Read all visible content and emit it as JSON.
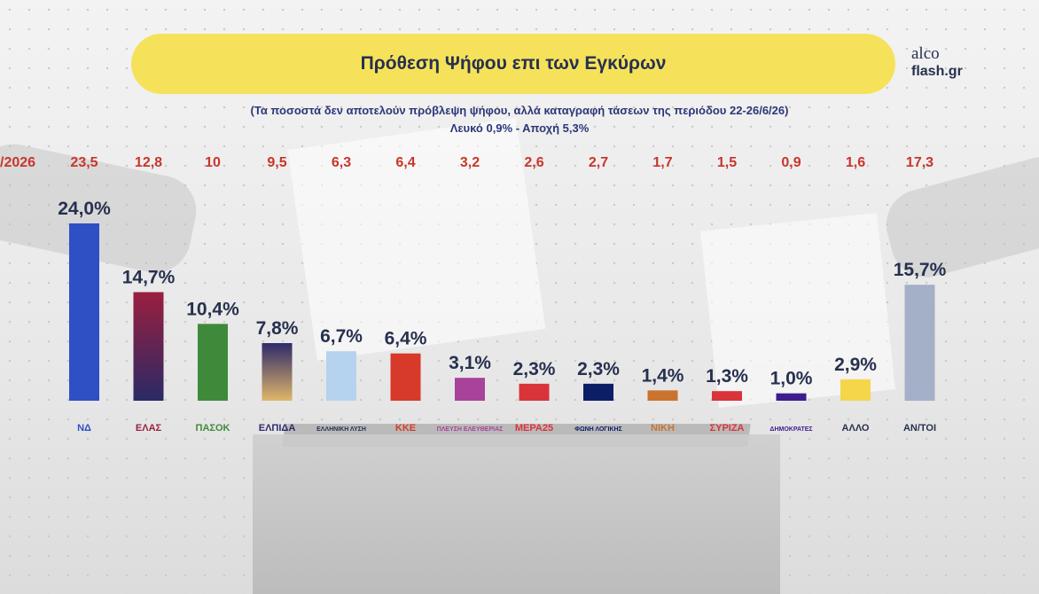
{
  "header": {
    "title": "Πρόθεση Ψήφου επι των Εγκύρων",
    "brand_top": "alco",
    "brand_bottom": "flash.gr",
    "subtitle_line1": "(Τα ποσοστά δεν αποτελούν πρόβλεψη ψήφου, αλλά καταγραφή τάσεων της περιόδου 22-26/6/26)",
    "subtitle_line2": "Λευκό 0,9% - Αποχή 5,3%"
  },
  "chart_data": {
    "type": "bar",
    "title": "Πρόθεση Ψήφου επι των Εγκύρων",
    "previous_row_label": "/2026",
    "categories": [
      "ΝΔ",
      "ΕΛΑΣ",
      "ΠΑΣΟΚ",
      "ΕΛΠΙΔΑ",
      "ΕΛΛΗΝΙΚΗ ΛΥΣΗ",
      "ΚΚΕ",
      "ΠΛΕΥΣΗ ΕΛΕΥΘΕΡΙΑΣ",
      "ΜΕΡΑ25",
      "ΦΩΝΗ ΛΟΓΙΚΗΣ",
      "ΝΙΚΗ",
      "ΣΥΡΙΖΑ",
      "ΔΗΜΟΚΡΑΤΕΣ",
      "ΑΛΛΟ",
      "ΑΝ/ΤΟΙ"
    ],
    "logo_labels": [
      "ΝΔ",
      "ΕΛΑΣ",
      "ΠΑΣΟΚ",
      "ΕΛΠΙΔΑ",
      "ΕΛΛΗΝΙΚΗ ΛΥΣΗ",
      "ΚΚΕ",
      "ΠΛΕΥΣΗ ΕΛΕΥΘΕΡΙΑΣ",
      "ΜΕΡΑ25",
      "ΦΩΝΗ ΛΟΓΙΚΗΣ",
      "ΝΙΚΗ",
      "ΣΥΡΙΖΑ",
      "ΔΗΜΟΚΡΑΤΕΣ",
      "ΑΛΛΟ",
      "ΑΝ/ΤΟΙ"
    ],
    "values": [
      24.0,
      14.7,
      10.4,
      7.8,
      6.7,
      6.4,
      3.1,
      2.3,
      2.3,
      1.4,
      1.3,
      1.0,
      2.9,
      15.7
    ],
    "value_labels": [
      "24,0%",
      "14,7%",
      "10,4%",
      "7,8%",
      "6,7%",
      "6,4%",
      "3,1%",
      "2,3%",
      "2,3%",
      "1,4%",
      "1,3%",
      "1,0%",
      "2,9%",
      "15,7%"
    ],
    "previous_values": [
      "23,5",
      "12,8",
      "10",
      "9,5",
      "6,3",
      "6,4",
      "3,2",
      "2,6",
      "2,7",
      "1,7",
      "1,5",
      "0,9",
      "1,6",
      "17,3"
    ],
    "colors": [
      "#2f4fc4",
      "#9a1f3f",
      "#3f8a3a",
      "#2e2a6b",
      "#b5d3ef",
      "#d7392b",
      "#a8429a",
      "#d9343a",
      "#0d1e66",
      "#c9732f",
      "#d9343a",
      "#3d1d8c",
      "#f5d64a",
      "#a4b0c8"
    ],
    "gradient_ends": [
      "#2f4fc4",
      "#2a2a66",
      "#3f8a3a",
      "#e0b66a",
      "#b5d3ef",
      "#d7392b",
      "#a8429a",
      "#d9343a",
      "#0d1e66",
      "#c9732f",
      "#d9343a",
      "#3d1d8c",
      "#f5d64a",
      "#a4b0c8"
    ],
    "ylim": [
      0,
      25
    ],
    "grid": false,
    "legend": "none",
    "value_label_color": "#27304e",
    "previous_value_color": "#c8352b"
  }
}
